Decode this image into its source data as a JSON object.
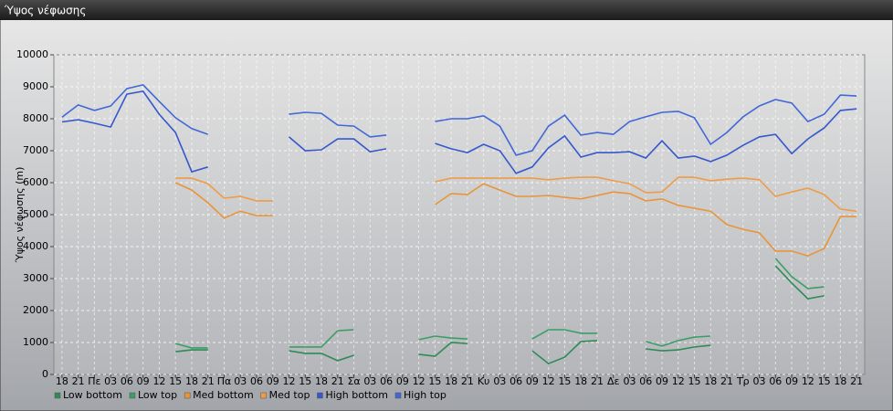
{
  "window": {
    "title": "Ύψος νέφωσης"
  },
  "chart_data": {
    "type": "line",
    "y_label": "Ύψος νέφωσης (m)",
    "categories": [
      "18",
      "21",
      "Πε",
      "03",
      "06",
      "09",
      "12",
      "15",
      "18",
      "21",
      "Πα",
      "03",
      "06",
      "09",
      "12",
      "15",
      "18",
      "21",
      "Σα",
      "03",
      "06",
      "09",
      "12",
      "15",
      "18",
      "21",
      "Κυ",
      "03",
      "06",
      "09",
      "12",
      "15",
      "18",
      "21",
      "Δε",
      "03",
      "06",
      "09",
      "12",
      "15",
      "18",
      "21",
      "Τρ",
      "03",
      "06",
      "09",
      "12",
      "15",
      "18",
      "21"
    ],
    "ylim": [
      0,
      10000
    ],
    "yticks": [
      0,
      1000,
      2000,
      3000,
      4000,
      5000,
      6000,
      7000,
      8000,
      9000,
      10000
    ],
    "grid": true,
    "legend": "bottom",
    "series": [
      {
        "name": "Low bottom",
        "color": "#2e8b57",
        "values": [
          null,
          null,
          null,
          null,
          null,
          null,
          null,
          710,
          770,
          770,
          null,
          null,
          null,
          null,
          740,
          660,
          660,
          430,
          600,
          null,
          null,
          null,
          630,
          570,
          1000,
          970,
          null,
          null,
          null,
          740,
          340,
          540,
          1030,
          1060,
          null,
          null,
          800,
          740,
          770,
          860,
          910,
          null,
          null,
          null,
          3400,
          2860,
          2370,
          2460,
          null,
          null
        ]
      },
      {
        "name": "Low top",
        "color": "#3a9e66",
        "values": [
          null,
          null,
          null,
          null,
          null,
          null,
          null,
          970,
          830,
          830,
          null,
          null,
          null,
          null,
          860,
          860,
          860,
          1370,
          1400,
          null,
          null,
          null,
          1090,
          1200,
          1140,
          1110,
          null,
          null,
          null,
          1110,
          1400,
          1400,
          1290,
          1290,
          null,
          null,
          1030,
          890,
          1060,
          1170,
          1200,
          null,
          null,
          null,
          3630,
          3060,
          2690,
          2740,
          null,
          null
        ]
      },
      {
        "name": "Med bottom",
        "color": "#e8953a",
        "values": [
          null,
          null,
          null,
          null,
          null,
          null,
          null,
          6000,
          5770,
          5370,
          4890,
          5110,
          4970,
          4970,
          null,
          null,
          null,
          null,
          null,
          null,
          null,
          null,
          null,
          5310,
          5660,
          5630,
          5970,
          5770,
          5570,
          5570,
          5600,
          5540,
          5490,
          5600,
          5710,
          5660,
          5430,
          5490,
          5290,
          5200,
          5110,
          4690,
          4540,
          4430,
          3860,
          3860,
          3710,
          3940,
          4940,
          4940
        ]
      },
      {
        "name": "Med top",
        "color": "#ee9c48",
        "values": [
          null,
          null,
          null,
          null,
          null,
          null,
          null,
          6140,
          6140,
          5970,
          5510,
          5570,
          5430,
          5430,
          null,
          null,
          null,
          null,
          null,
          null,
          null,
          null,
          null,
          6030,
          6140,
          6140,
          6140,
          6140,
          6140,
          6140,
          6090,
          6140,
          6170,
          6170,
          6060,
          5970,
          5690,
          5710,
          6170,
          6170,
          6060,
          6110,
          6140,
          6090,
          5570,
          5710,
          5830,
          5630,
          5170,
          5110
        ]
      },
      {
        "name": "High bottom",
        "color": "#3558cc",
        "values": [
          7900,
          7970,
          7860,
          7740,
          8770,
          8860,
          8140,
          7570,
          6340,
          6490,
          null,
          null,
          null,
          null,
          7430,
          7000,
          7030,
          7370,
          7370,
          6970,
          7060,
          null,
          null,
          7230,
          7060,
          6940,
          7200,
          7000,
          6290,
          6490,
          7090,
          7460,
          6800,
          6940,
          6940,
          6970,
          6770,
          7310,
          6770,
          6830,
          6660,
          6860,
          7170,
          7430,
          7510,
          6910,
          7370,
          7710,
          8260,
          8310
        ]
      },
      {
        "name": "High top",
        "color": "#4168d6",
        "values": [
          8050,
          8430,
          8260,
          8400,
          8940,
          9060,
          8540,
          8030,
          7690,
          7510,
          null,
          null,
          null,
          null,
          8140,
          8200,
          8170,
          7800,
          7770,
          7430,
          7490,
          null,
          null,
          7910,
          8000,
          8000,
          8090,
          7770,
          6860,
          7000,
          7770,
          8110,
          7490,
          7570,
          7510,
          7910,
          8060,
          8200,
          8230,
          8030,
          7200,
          7570,
          8060,
          8400,
          8600,
          8490,
          7910,
          8140,
          8740,
          8710
        ]
      }
    ]
  }
}
